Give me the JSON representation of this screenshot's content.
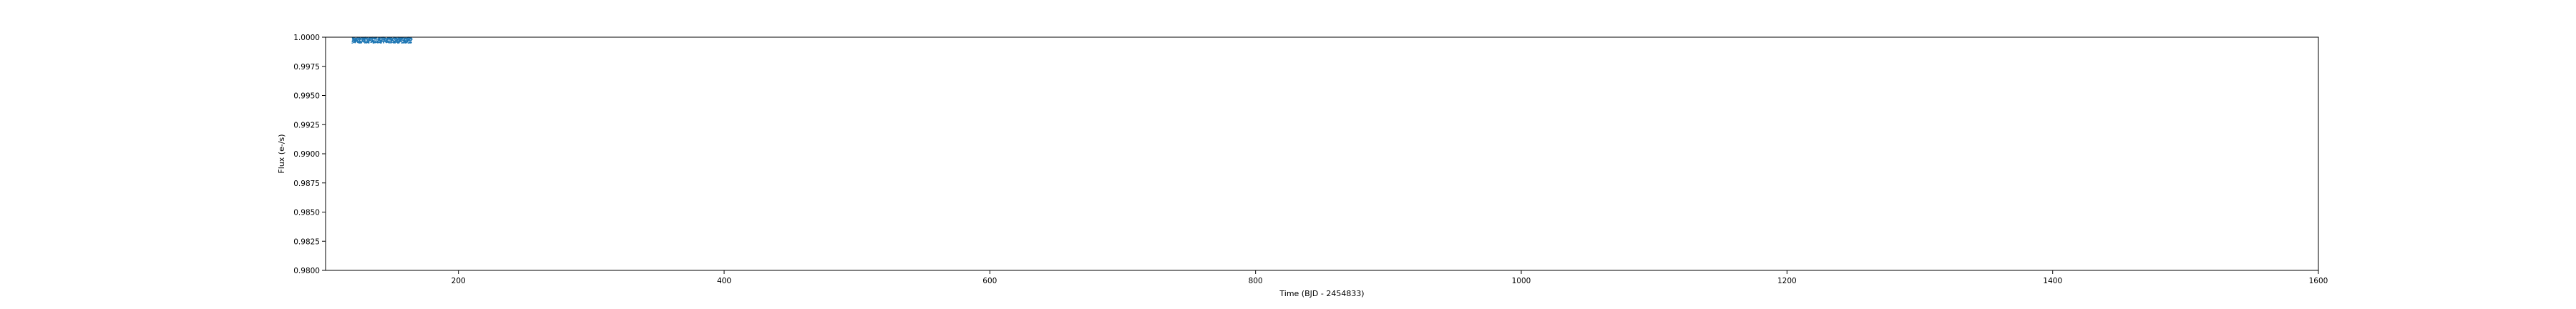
{
  "chart_data": {
    "type": "scatter",
    "title": "",
    "xlabel": "Time (BJD - 2454833)",
    "ylabel": "Flux (e-/s)",
    "xlim": [
      100,
      1600
    ],
    "ylim": [
      0.98,
      1.0
    ],
    "x_ticks": [
      200,
      400,
      600,
      800,
      1000,
      1200,
      1400,
      1600
    ],
    "y_ticks": [
      0.98,
      0.9825,
      0.985,
      0.9875,
      0.99,
      0.9925,
      0.995,
      0.9975,
      1.0
    ],
    "x_tick_labels": [
      "200",
      "400",
      "600",
      "800",
      "1000",
      "1200",
      "1400",
      "1600"
    ],
    "y_tick_labels": [
      "0.9800",
      "0.9825",
      "0.9850",
      "0.9875",
      "0.9900",
      "0.9925",
      "0.9950",
      "0.9975",
      "1.0000"
    ],
    "grid": false,
    "colors": {
      "series": "#1f77b4",
      "axes": "#000000",
      "background": "#ffffff"
    },
    "series": [
      {
        "x_range": [
          120,
          165
        ],
        "y_level": 0.9998,
        "y_scatter": 0.0003,
        "points": 900
      }
    ]
  }
}
